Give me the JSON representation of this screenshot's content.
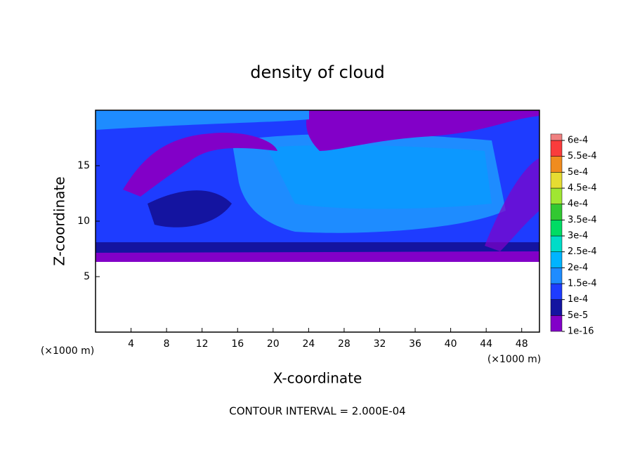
{
  "chart_data": {
    "type": "contour",
    "title": "density of cloud",
    "xlabel": "X-coordinate",
    "ylabel": "Z-coordinate",
    "x_unit_left": "(×1000 m)",
    "x_unit_right": "(×1000 m)",
    "xlim": [
      0,
      50
    ],
    "xticks": [
      4,
      8,
      12,
      16,
      20,
      24,
      28,
      32,
      36,
      40,
      44,
      48
    ],
    "ylim": [
      0,
      20
    ],
    "yticks": [
      5,
      10,
      15
    ],
    "colorbar": {
      "levels": [
        {
          "value": 1e-16,
          "label": "1e-16"
        },
        {
          "value": 5e-05,
          "label": "5e-5"
        },
        {
          "value": 0.0001,
          "label": "1e-4"
        },
        {
          "value": 0.00015,
          "label": "1.5e-4"
        },
        {
          "value": 0.0002,
          "label": "2e-4"
        },
        {
          "value": 0.00025,
          "label": "2.5e-4"
        },
        {
          "value": 0.0003,
          "label": "3e-4"
        },
        {
          "value": 0.00035,
          "label": "3.5e-4"
        },
        {
          "value": 0.0004,
          "label": "4e-4"
        },
        {
          "value": 0.00045,
          "label": "4.5e-4"
        },
        {
          "value": 0.0005,
          "label": "5e-4"
        },
        {
          "value": 0.00055,
          "label": "5.5e-4"
        },
        {
          "value": 0.0006,
          "label": "6e-4"
        }
      ],
      "colors": [
        "#8200c8",
        "#1414a0",
        "#1e3cff",
        "#1e8cff",
        "#00b4ff",
        "#00dcc8",
        "#00dc64",
        "#32c832",
        "#a0e632",
        "#e6dc32",
        "#f08c1e",
        "#fa3c3c",
        "#f08080"
      ]
    },
    "footer": "CONTOUR INTERVAL = 2.000E-04"
  }
}
